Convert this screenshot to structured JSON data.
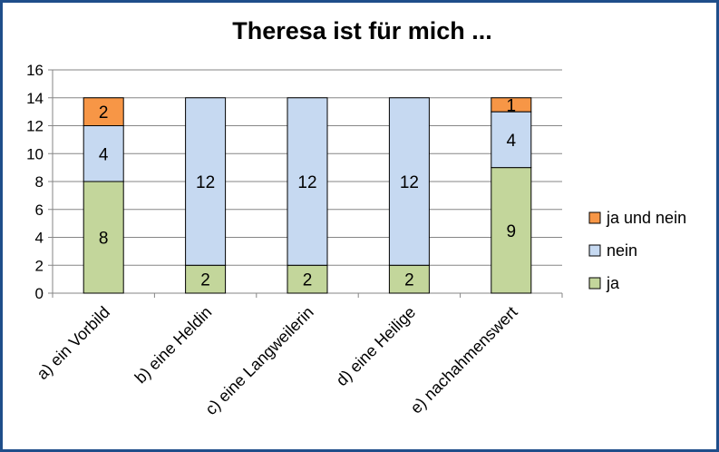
{
  "chart_data": {
    "type": "bar",
    "stacked": true,
    "title": "Theresa ist für mich ...",
    "xlabel": "",
    "ylabel": "",
    "ylim": [
      0,
      16
    ],
    "yticks": [
      "0",
      "2",
      "4",
      "6",
      "8",
      "10",
      "12",
      "14",
      "16"
    ],
    "grid": true,
    "legend_position": "right",
    "categories": [
      "a) ein Vorbild",
      "b) eine Heldin",
      "c) eine Langweilerin",
      "d) eine Heilige",
      "e) nachahmenswert"
    ],
    "series": [
      {
        "name": "ja",
        "color": "#c3d69b",
        "values": [
          8,
          2,
          2,
          2,
          9
        ]
      },
      {
        "name": "nein",
        "color": "#c6d9f1",
        "values": [
          4,
          12,
          12,
          12,
          4
        ]
      },
      {
        "name": "ja und nein",
        "color": "#f79646",
        "values": [
          2,
          0,
          0,
          0,
          1
        ]
      }
    ],
    "legend_order": [
      "ja und nein",
      "nein",
      "ja"
    ]
  }
}
